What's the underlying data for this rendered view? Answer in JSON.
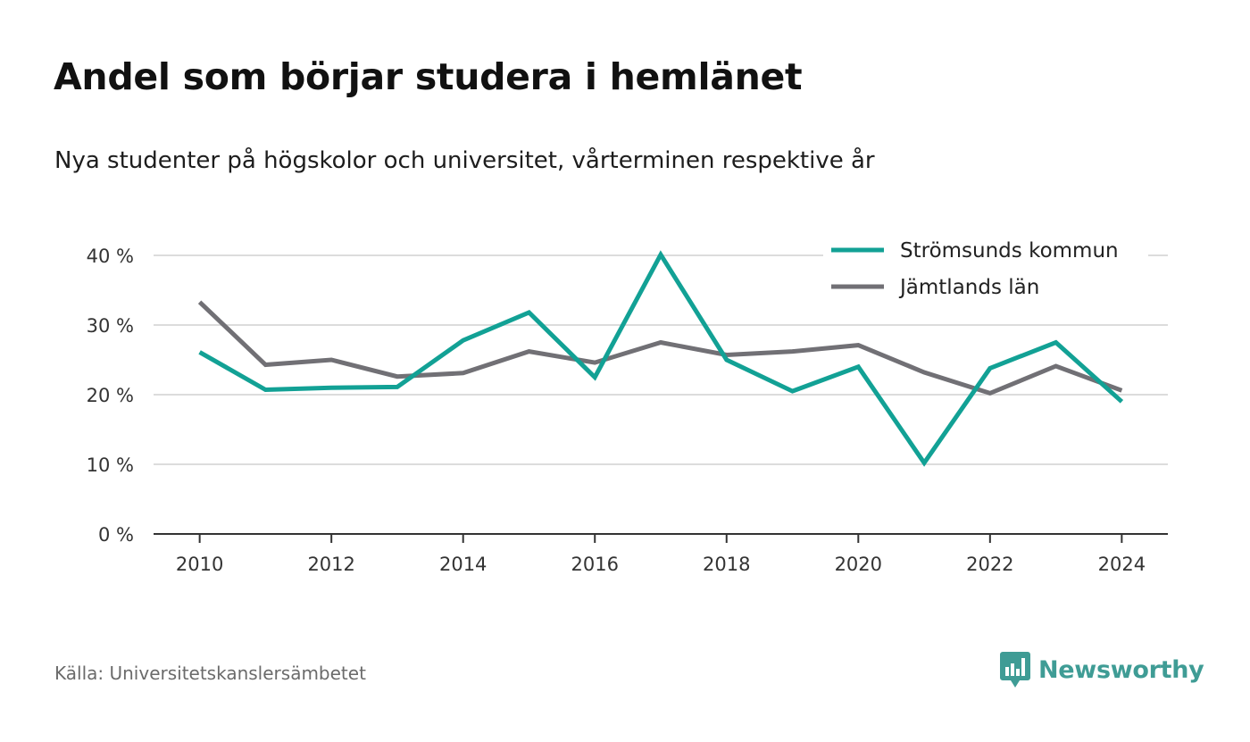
{
  "header": {
    "title": "Andel som börjar studera i hemlänet",
    "subtitle": "Nya studenter på högskolor och universitet, vårterminen respektive år"
  },
  "footer": {
    "source": "Källa: Universitetskanslersämbetet",
    "brand": "Newsworthy",
    "brand_color": "#3f9c95",
    "brand_icon": "bar-chart-speech-bubble-icon"
  },
  "chart_data": {
    "type": "line",
    "x": [
      2010,
      2011,
      2012,
      2013,
      2014,
      2015,
      2016,
      2017,
      2018,
      2019,
      2020,
      2021,
      2022,
      2023,
      2024
    ],
    "xticks": [
      2010,
      2012,
      2014,
      2016,
      2018,
      2020,
      2022,
      2024
    ],
    "xtick_labels": [
      "2010",
      "2012",
      "2014",
      "2016",
      "2018",
      "2020",
      "2022",
      "2024"
    ],
    "xlim": [
      2009.3,
      2024.7
    ],
    "ylim": [
      0,
      40
    ],
    "yticks": [
      0,
      10,
      20,
      30,
      40
    ],
    "ytick_labels": [
      "0 %",
      "10 %",
      "20 %",
      "30 %",
      "40 %"
    ],
    "grid": true,
    "legend_position": "top-right",
    "series": [
      {
        "name": "Strömsunds kommun",
        "color": "#12a195",
        "values": [
          26.1,
          20.7,
          21.0,
          21.1,
          27.8,
          31.8,
          22.5,
          40.1,
          25.0,
          20.5,
          24.0,
          10.2,
          23.8,
          27.5,
          19.0
        ]
      },
      {
        "name": "Jämtlands län",
        "color": "#717075",
        "values": [
          33.3,
          24.3,
          25.0,
          22.6,
          23.1,
          26.2,
          24.6,
          27.5,
          25.7,
          26.2,
          27.1,
          23.2,
          20.2,
          24.1,
          20.6
        ]
      }
    ]
  }
}
